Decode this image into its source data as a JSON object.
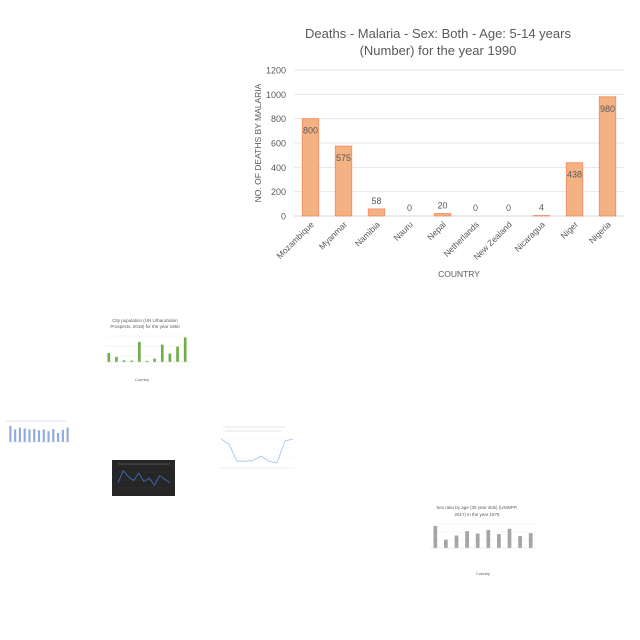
{
  "chart_data": [
    {
      "type": "bar",
      "title": [
        "Deaths - Malaria - Sex: Both - Age: 5-14 years",
        "(Number) for the year 1990"
      ],
      "xlabel": "COUNTRY",
      "ylabel": "NO. OF DEATHS BY MALARIA",
      "categories": [
        "Mozambique",
        "Myanmar",
        "Namibia",
        "Nauru",
        "Nepal",
        "Netherlands",
        "New Zealand",
        "Nicaragua",
        "Niger",
        "Nigeria"
      ],
      "values": [
        800,
        575,
        58,
        0,
        20,
        0,
        0,
        4,
        438,
        980
      ],
      "data_labels": [
        "800",
        "575",
        "58",
        "0",
        "20",
        "0",
        "0",
        "4",
        "438",
        "980"
      ],
      "ylim": [
        0,
        1200
      ],
      "yticks": [
        "0",
        "200",
        "400",
        "600",
        "800",
        "1000",
        "1200"
      ],
      "grid": true,
      "legend": "none",
      "bar_color": "#f4b183",
      "bar_edge_color": "#f08a5d"
    },
    {
      "type": "bar",
      "title": [
        "City population (UN Urbanization",
        "Prospects, 2018) for the year 1950"
      ],
      "xlabel": "Country",
      "values": [
        0.32,
        0.18,
        0.06,
        0.05,
        0.72,
        0.04,
        0.12,
        0.62,
        0.3,
        0.55,
        0.88
      ],
      "bar_color": "#70ad47"
    },
    {
      "type": "bar",
      "values": [
        0.9,
        0.7,
        0.8,
        0.75,
        0.7,
        0.72,
        0.65,
        0.7,
        0.6,
        0.72,
        0.5,
        0.68,
        0.8
      ],
      "bar_color": "#8faadc"
    },
    {
      "type": "line",
      "values": [
        0.3,
        0.8,
        0.55,
        0.4,
        0.7,
        0.35,
        0.5,
        0.2,
        0.6,
        0.45,
        0.3
      ],
      "line_color": "#4472c4"
    },
    {
      "type": "line",
      "values": [
        0.85,
        0.7,
        0.2,
        0.2,
        0.22,
        0.35,
        0.2,
        0.15,
        0.8,
        0.85
      ],
      "line_color": "#9dc3e6"
    },
    {
      "type": "bar",
      "title": [
        "Sex ratio by age (30 year olds) (UNWPP,",
        "2017) in the year 1975"
      ],
      "xlabel": "Country",
      "values": [
        0.92,
        0.35,
        0.52,
        0.7,
        0.6,
        0.75,
        0.58,
        0.8,
        0.5,
        0.62
      ],
      "bar_color": "#a5a5a5"
    }
  ]
}
